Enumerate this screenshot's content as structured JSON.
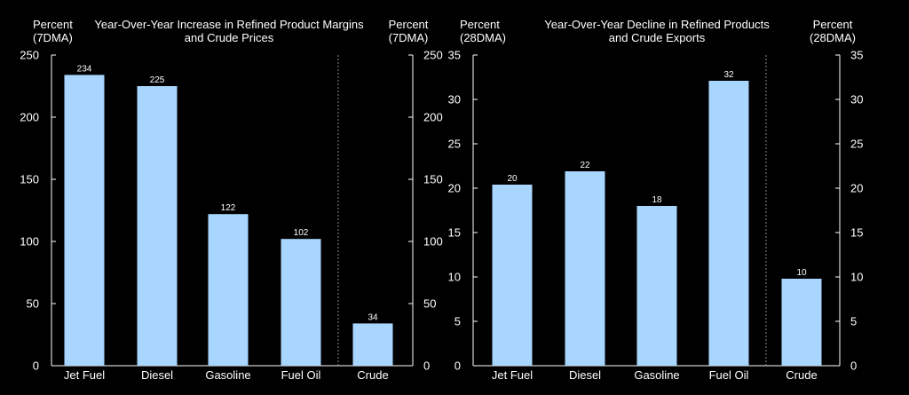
{
  "colors": {
    "bar": "#a8d6ff",
    "background": "#000000",
    "text": "#ffffff",
    "divider": "#888888"
  },
  "chart_data": [
    {
      "type": "bar",
      "title": [
        "Year-Over-Year Increase in Refined Product Margins",
        "and Crude Prices"
      ],
      "left_unit": [
        "Percent",
        "(7DMA)"
      ],
      "right_unit": [
        "Percent",
        "(7DMA)"
      ],
      "categories": [
        "Jet Fuel",
        "Diesel",
        "Gasoline",
        "Fuel Oil",
        "Crude"
      ],
      "values": [
        234,
        225,
        122,
        102,
        34
      ],
      "data_labels": [
        "234",
        "225",
        "122",
        "102",
        "34"
      ],
      "ylim": [
        0,
        250
      ],
      "yticks": [
        0,
        50,
        100,
        150,
        200,
        250
      ],
      "divider_before_category": "Crude"
    },
    {
      "type": "bar",
      "title": [
        "Year-Over-Year Decline in Refined Products",
        "and Crude Exports"
      ],
      "left_unit": [
        "Percent",
        "(28DMA)"
      ],
      "right_unit": [
        "Percent",
        "(28DMA)"
      ],
      "categories": [
        "Jet Fuel",
        "Diesel",
        "Gasoline",
        "Fuel Oil",
        "Crude"
      ],
      "values": [
        20.4,
        21.9,
        18.0,
        32.1,
        9.8
      ],
      "data_labels": [
        "20",
        "22",
        "18",
        "32",
        "10"
      ],
      "ylim": [
        0,
        35
      ],
      "yticks": [
        0,
        5,
        10,
        15,
        20,
        25,
        30,
        35
      ],
      "divider_before_category": "Crude"
    }
  ]
}
